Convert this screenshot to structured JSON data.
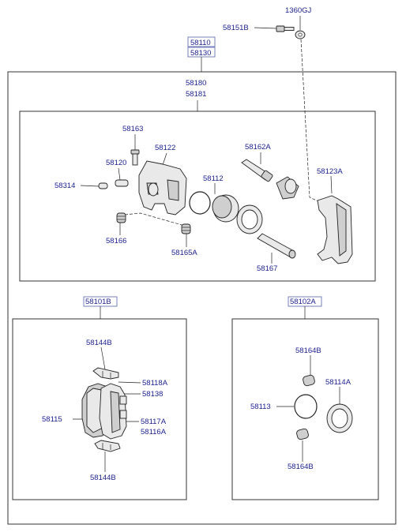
{
  "labels": {
    "l1360gj": "1360GJ",
    "l58151b": "58151B",
    "l58110": "58110",
    "l58130": "58130",
    "l58180": "58180",
    "l58181": "58181",
    "l58163": "58163",
    "l58122": "58122",
    "l58162a": "58162A",
    "l58120": "58120",
    "l58123a": "58123A",
    "l58314": "58314",
    "l58112": "58112",
    "l58166": "58166",
    "l58165a": "58165A",
    "l58167": "58167",
    "l58101b": "58101B",
    "l58102a": "58102A",
    "l58144b_top": "58144B",
    "l58118a": "58118A",
    "l58138": "58138",
    "l58115": "58115",
    "l58117a": "58117A",
    "l58116a": "58116A",
    "l58144b_bot": "58144B",
    "l58164b_top": "58164B",
    "l58114a": "58114A",
    "l58113": "58113",
    "l58164b_bot": "58164B"
  }
}
